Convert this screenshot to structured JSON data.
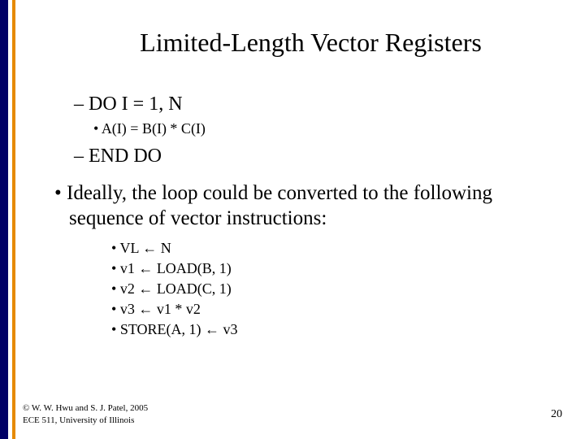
{
  "colors": {
    "navy": "#000066",
    "orange": "#e68a00",
    "background": "#ffffff",
    "text": "#000000"
  },
  "title": "Limited-Length Vector Registers",
  "code": {
    "line1": "DO I = 1, N",
    "inner": "A(I) = B(I) * C(I)",
    "line2": "END DO"
  },
  "main_text": "Ideally, the loop could be converted to the following sequence of vector instructions:",
  "instructions": {
    "i0": "VL ← N",
    "i1": "v1 ←  LOAD(B, 1)",
    "i2": "v2 ←  LOAD(C, 1)",
    "i3": "v3 ← v1 * v2",
    "i4": "STORE(A, 1) ←  v3"
  },
  "footer": {
    "line1": "© W. W. Hwu and S. J. Patel, 2005",
    "line2": "ECE 511, University of Illinois"
  },
  "page_number": "20"
}
